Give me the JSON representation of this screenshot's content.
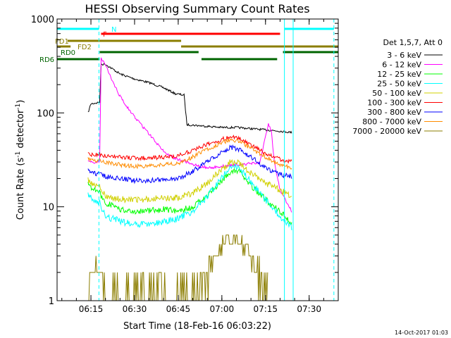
{
  "chart_data": {
    "type": "line",
    "title": "HESSI Observing Summary Count Rates",
    "xlabel": "Start Time (18-Feb-16 06:03:22)",
    "ylabel_main": "Count Rate (s",
    "ylabel_sup1": "-1",
    "ylabel_mid": " detector",
    "ylabel_sup2": "-1",
    "ylabel_end": ")",
    "yscale": "log",
    "ylim": [
      1,
      1000
    ],
    "xlim": [
      "06:03:22",
      "07:40:00"
    ],
    "x_ticks": [
      "06:15",
      "06:30",
      "06:45",
      "07:00",
      "07:15",
      "07:30"
    ],
    "y_ticks": [
      "1",
      "10",
      "100",
      "1000"
    ],
    "legend_header": "Det 1,5,7, Att 0",
    "legend_placement": "right",
    "series": [
      {
        "name": "3 - 6 keV",
        "color": "#000000",
        "points": [
          [
            "06:14",
            100
          ],
          [
            "06:15",
            125
          ],
          [
            "06:17",
            128
          ],
          [
            "06:18",
            130
          ],
          [
            "06:18:30",
            330
          ],
          [
            "06:20",
            330
          ],
          [
            "06:25",
            260
          ],
          [
            "06:30",
            230
          ],
          [
            "06:35",
            210
          ],
          [
            "06:40",
            185
          ],
          [
            "06:44",
            160
          ],
          [
            "06:47",
            155
          ],
          [
            "06:48",
            75
          ],
          [
            "06:55",
            72
          ],
          [
            "07:00",
            70
          ],
          [
            "07:05",
            70
          ],
          [
            "07:10",
            68
          ],
          [
            "07:15",
            66
          ],
          [
            "07:20",
            64
          ],
          [
            "07:24",
            62
          ]
        ]
      },
      {
        "name": "6 - 12 keV",
        "color": "#ff00ff",
        "points": [
          [
            "06:14",
            30
          ],
          [
            "06:18",
            30
          ],
          [
            "06:18:30",
            380
          ],
          [
            "06:20",
            330
          ],
          [
            "06:22",
            230
          ],
          [
            "06:25",
            150
          ],
          [
            "06:28",
            110
          ],
          [
            "06:30",
            90
          ],
          [
            "06:33",
            70
          ],
          [
            "06:36",
            55
          ],
          [
            "06:39",
            42
          ],
          [
            "06:42",
            35
          ],
          [
            "06:45",
            32
          ],
          [
            "06:48",
            30
          ],
          [
            "06:52",
            27
          ],
          [
            "06:56",
            26
          ],
          [
            "07:00",
            27
          ],
          [
            "07:05",
            28
          ],
          [
            "07:10",
            29
          ],
          [
            "07:13",
            29
          ],
          [
            "07:15",
            55
          ],
          [
            "07:16",
            75
          ],
          [
            "07:17",
            65
          ],
          [
            "07:18",
            30
          ],
          [
            "07:20",
            15
          ],
          [
            "07:24",
            9
          ]
        ]
      },
      {
        "name": "12 - 25 keV",
        "color": "#00ff00",
        "points": [
          [
            "06:14",
            17
          ],
          [
            "06:18",
            14
          ],
          [
            "06:20",
            11
          ],
          [
            "06:25",
            9.5
          ],
          [
            "06:30",
            9
          ],
          [
            "06:35",
            9
          ],
          [
            "06:40",
            9.5
          ],
          [
            "06:45",
            9
          ],
          [
            "06:50",
            10
          ],
          [
            "06:55",
            13
          ],
          [
            "07:00",
            19
          ],
          [
            "07:03",
            24
          ],
          [
            "07:06",
            24
          ],
          [
            "07:10",
            17
          ],
          [
            "07:15",
            12
          ],
          [
            "07:20",
            9
          ],
          [
            "07:24",
            6.5
          ]
        ]
      },
      {
        "name": "25 - 50 keV",
        "color": "#00ffff",
        "points": [
          [
            "06:14",
            13
          ],
          [
            "06:18",
            11
          ],
          [
            "06:20",
            8
          ],
          [
            "06:25",
            7
          ],
          [
            "06:30",
            6.5
          ],
          [
            "06:35",
            6.5
          ],
          [
            "06:40",
            7
          ],
          [
            "06:45",
            7.5
          ],
          [
            "06:50",
            9
          ],
          [
            "06:55",
            13
          ],
          [
            "07:00",
            20
          ],
          [
            "07:03",
            28
          ],
          [
            "07:06",
            26
          ],
          [
            "07:10",
            18
          ],
          [
            "07:15",
            12
          ],
          [
            "07:20",
            8
          ],
          [
            "07:24",
            6
          ]
        ]
      },
      {
        "name": "50 - 100 keV",
        "color": "#d0d000",
        "points": [
          [
            "06:14",
            19
          ],
          [
            "06:18",
            16
          ],
          [
            "06:20",
            13
          ],
          [
            "06:25",
            12
          ],
          [
            "06:30",
            12
          ],
          [
            "06:35",
            12
          ],
          [
            "06:40",
            12.5
          ],
          [
            "06:45",
            12.5
          ],
          [
            "06:50",
            14
          ],
          [
            "06:55",
            18
          ],
          [
            "07:00",
            25
          ],
          [
            "07:03",
            30
          ],
          [
            "07:06",
            29
          ],
          [
            "07:10",
            23
          ],
          [
            "07:15",
            18
          ],
          [
            "07:20",
            15
          ],
          [
            "07:24",
            13
          ]
        ]
      },
      {
        "name": "100 - 300 keV",
        "color": "#ff0000",
        "points": [
          [
            "06:14",
            36
          ],
          [
            "06:18",
            36
          ],
          [
            "06:20",
            35
          ],
          [
            "06:25",
            34
          ],
          [
            "06:30",
            33
          ],
          [
            "06:35",
            33
          ],
          [
            "06:40",
            34
          ],
          [
            "06:45",
            35
          ],
          [
            "06:50",
            40
          ],
          [
            "06:55",
            46
          ],
          [
            "07:00",
            52
          ],
          [
            "07:03",
            56
          ],
          [
            "07:06",
            53
          ],
          [
            "07:10",
            45
          ],
          [
            "07:15",
            37
          ],
          [
            "07:20",
            32
          ],
          [
            "07:24",
            30
          ]
        ]
      },
      {
        "name": "300 - 800 keV",
        "color": "#0000ff",
        "points": [
          [
            "06:14",
            24
          ],
          [
            "06:18",
            22
          ],
          [
            "06:20",
            21
          ],
          [
            "06:25",
            20
          ],
          [
            "06:30",
            19
          ],
          [
            "06:35",
            19
          ],
          [
            "06:40",
            19.5
          ],
          [
            "06:45",
            20
          ],
          [
            "06:50",
            24
          ],
          [
            "06:55",
            30
          ],
          [
            "07:00",
            38
          ],
          [
            "07:03",
            43
          ],
          [
            "07:06",
            41
          ],
          [
            "07:10",
            34
          ],
          [
            "07:15",
            26
          ],
          [
            "07:20",
            22
          ],
          [
            "07:24",
            21
          ]
        ]
      },
      {
        "name": "800 - 7000 keV",
        "color": "#ff8c00",
        "points": [
          [
            "06:14",
            32
          ],
          [
            "06:18",
            31
          ],
          [
            "06:20",
            30
          ],
          [
            "06:25",
            28
          ],
          [
            "06:30",
            27
          ],
          [
            "06:35",
            27
          ],
          [
            "06:40",
            28
          ],
          [
            "06:45",
            29
          ],
          [
            "06:50",
            34
          ],
          [
            "06:55",
            41
          ],
          [
            "07:00",
            48
          ],
          [
            "07:03",
            52
          ],
          [
            "07:06",
            50
          ],
          [
            "07:10",
            42
          ],
          [
            "07:15",
            34
          ],
          [
            "07:20",
            28
          ],
          [
            "07:24",
            26
          ]
        ]
      },
      {
        "name": "7000 - 20000 keV",
        "color": "#8b7d00",
        "points": [
          [
            "06:14",
            1
          ],
          [
            "06:15",
            2
          ],
          [
            "06:18",
            2
          ],
          [
            "06:19",
            1.5
          ],
          [
            "06:20",
            1
          ],
          [
            "06:51",
            1
          ],
          [
            "06:52",
            1.5
          ],
          [
            "06:55",
            2
          ],
          [
            "06:58",
            3
          ],
          [
            "07:00",
            4
          ],
          [
            "07:04",
            5
          ],
          [
            "07:07",
            4
          ],
          [
            "07:10",
            3
          ],
          [
            "07:12",
            2
          ],
          [
            "07:14",
            1.5
          ],
          [
            "07:16",
            1
          ]
        ]
      }
    ],
    "flag_bars": [
      {
        "name": "N",
        "color": "#00ffff",
        "segments": [
          [
            "06:03:22",
            "06:17:45"
          ],
          [
            "07:21:30",
            "07:38:30"
          ]
        ]
      },
      {
        "name": "F",
        "color": "#ff0000",
        "segments": [
          [
            "06:18:30",
            "07:20:00"
          ]
        ]
      },
      {
        "name": "FD1",
        "color": "#8b7d00",
        "segments": [
          [
            "06:07:00",
            "06:46:00"
          ]
        ]
      },
      {
        "name": "FD2",
        "color": "#8b7d00",
        "segments": [
          [
            "06:03:22",
            "06:08:00"
          ],
          [
            "06:46:00",
            "07:40:00"
          ]
        ]
      },
      {
        "name": "RD0",
        "color": "#006400",
        "segments": [
          [
            "06:18:00",
            "06:52:00"
          ],
          [
            "07:21:00",
            "07:40:00"
          ]
        ]
      },
      {
        "name": "RD6",
        "color": "#006400",
        "segments": [
          [
            "06:03:22",
            "06:18:00"
          ],
          [
            "06:53:00",
            "07:19:00"
          ]
        ]
      }
    ],
    "vertical_markers": [
      {
        "time": "06:17:45",
        "color": "#00ffff",
        "style": "dashed"
      },
      {
        "time": "07:21:30",
        "color": "#00ffff",
        "style": "solid"
      },
      {
        "time": "07:24:30",
        "color": "#00ffff",
        "style": "solid"
      },
      {
        "time": "07:38:30",
        "color": "#00ffff",
        "style": "dashed"
      }
    ]
  },
  "footer_date": "14-Oct-2017 01:03"
}
